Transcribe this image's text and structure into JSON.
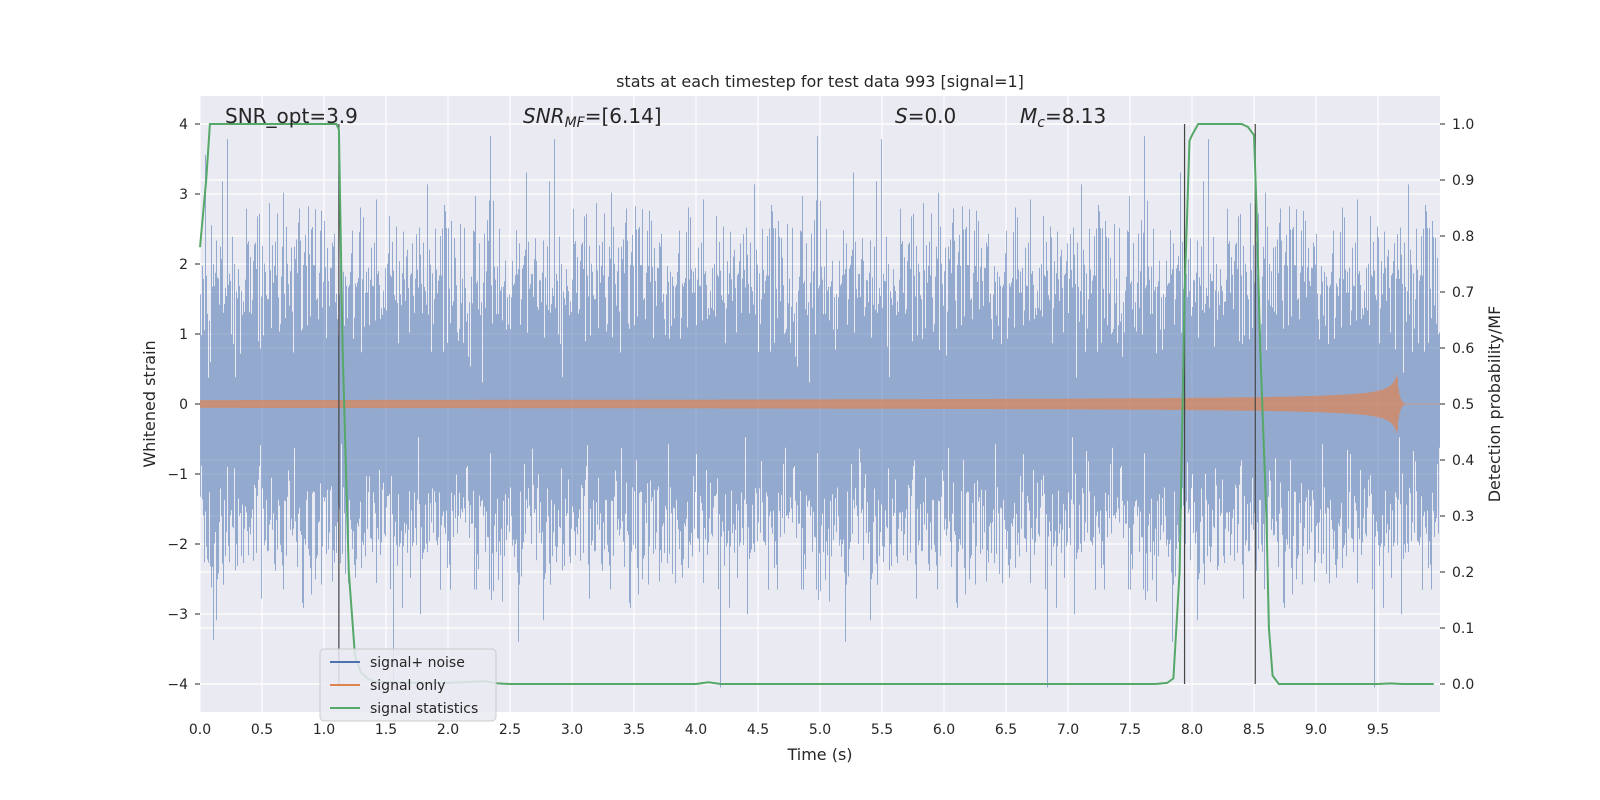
{
  "chart_data": {
    "type": "line",
    "title": "stats at each timestep for test data 993 [signal=1]",
    "xlabel": "Time (s)",
    "ylabel": "Whitened strain",
    "y2label": "Detection probability/MF",
    "xlim": [
      0,
      10
    ],
    "ylim": [
      -4.4,
      4.4
    ],
    "y2lim": [
      -0.05,
      1.05
    ],
    "xticks": [
      "0.0",
      "0.5",
      "1.0",
      "1.5",
      "2.0",
      "2.5",
      "3.0",
      "3.5",
      "4.0",
      "4.5",
      "5.0",
      "5.5",
      "6.0",
      "6.5",
      "7.0",
      "7.5",
      "8.0",
      "8.5",
      "9.0",
      "9.5"
    ],
    "xtick_values": [
      0,
      0.5,
      1,
      1.5,
      2,
      2.5,
      3,
      3.5,
      4,
      4.5,
      5,
      5.5,
      6,
      6.5,
      7,
      7.5,
      8,
      8.5,
      9,
      9.5
    ],
    "yticks": [
      "−4",
      "−3",
      "−2",
      "−1",
      "0",
      "1",
      "2",
      "3",
      "4"
    ],
    "ytick_values": [
      -4,
      -3,
      -2,
      -1,
      0,
      1,
      2,
      3,
      4
    ],
    "y2ticks": [
      "0.0",
      "0.1",
      "0.2",
      "0.3",
      "0.4",
      "0.5",
      "0.6",
      "0.7",
      "0.8",
      "0.9",
      "1.0"
    ],
    "y2tick_values": [
      0,
      0.1,
      0.2,
      0.3,
      0.4,
      0.5,
      0.6,
      0.7,
      0.8,
      0.9,
      1.0
    ],
    "grid": true,
    "legend_position": "lower-left",
    "annotations": {
      "snr_opt": "SNR_opt=3.9",
      "snr_mf_base": "SNR",
      "snr_mf_sub": "MF",
      "snr_mf_rest": "=[6.14]",
      "s_var": "S",
      "s_rest": "=0.0",
      "mc_var": "M",
      "mc_sub": "c",
      "mc_rest": "=8.13"
    },
    "vlines": [
      1.12,
      7.94,
      8.51
    ],
    "series": [
      {
        "name": "signal+ noise",
        "color": "#4c72b0",
        "noise_sigma": 1.0,
        "t_range": [
          0,
          10
        ]
      },
      {
        "name": "signal only",
        "color": "#dd8452",
        "chirp": {
          "t_start": 0,
          "t_merge": 9.65,
          "amp_start": 0.03,
          "amp_peak": 0.45
        }
      },
      {
        "name": "signal statistics",
        "color": "#55a868",
        "axis": "right",
        "x": [
          0.0,
          0.05,
          0.08,
          0.12,
          0.2,
          0.4,
          0.7,
          1.0,
          1.08,
          1.1,
          1.12,
          1.15,
          1.2,
          1.25,
          1.3,
          1.35,
          1.4,
          1.5,
          1.7,
          2.0,
          2.2,
          2.3,
          2.4,
          2.5,
          3.0,
          3.5,
          4.0,
          4.1,
          4.2,
          4.5,
          5.0,
          5.5,
          6.0,
          6.5,
          7.0,
          7.5,
          7.7,
          7.8,
          7.85,
          7.9,
          7.94,
          7.98,
          8.0,
          8.05,
          8.1,
          8.2,
          8.3,
          8.4,
          8.45,
          8.5,
          8.52,
          8.55,
          8.6,
          8.62,
          8.65,
          8.7,
          8.8,
          9.0,
          9.5,
          9.6,
          9.7,
          9.95
        ],
        "y": [
          0.78,
          0.9,
          1.0,
          1.0,
          1.0,
          1.0,
          1.0,
          1.0,
          1.0,
          1.0,
          0.99,
          0.6,
          0.2,
          0.05,
          0.02,
          0.01,
          0.005,
          0.003,
          0.002,
          0.002,
          0.004,
          0.005,
          0.001,
          0.0,
          0.0,
          0.0,
          0.0,
          0.003,
          0.0,
          0.0,
          0.0,
          0.0,
          0.0,
          0.0,
          0.0,
          0.0,
          0.0,
          0.002,
          0.01,
          0.2,
          0.7,
          0.97,
          0.98,
          1.0,
          1.0,
          1.0,
          1.0,
          1.0,
          0.995,
          0.98,
          0.85,
          0.6,
          0.3,
          0.1,
          0.015,
          0.0,
          0.0,
          0.0,
          0.0,
          0.001,
          0.0,
          0.0
        ]
      }
    ]
  }
}
